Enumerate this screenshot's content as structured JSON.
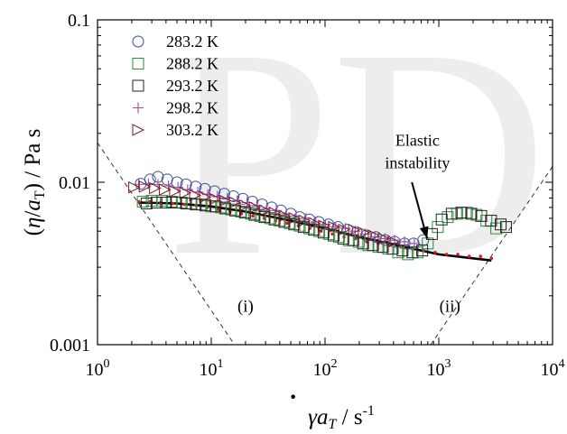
{
  "watermark_text": "PD",
  "chart_data": {
    "type": "scatter",
    "xscale": "log",
    "yscale": "log",
    "xlim": [
      1,
      10000
    ],
    "ylim": [
      0.001,
      0.1
    ],
    "xlabel": {
      "gamma": "γ",
      "dot": "·",
      "a": "a",
      "sub": "T",
      "sep": " / s",
      "exp": "-1"
    },
    "ylabel": {
      "open": "(",
      "eta": "η",
      "slash": "/",
      "a": "a",
      "sub": "T",
      "close": ")",
      "unit": " / Pa s"
    },
    "x_ticks": [
      {
        "value": 1,
        "base": "10",
        "exp": "0"
      },
      {
        "value": 10,
        "base": "10",
        "exp": "1"
      },
      {
        "value": 100,
        "base": "10",
        "exp": "2"
      },
      {
        "value": 1000,
        "base": "10",
        "exp": "3"
      },
      {
        "value": 10000,
        "base": "10",
        "exp": "4"
      }
    ],
    "y_ticks": [
      {
        "value": 0.001,
        "label": "0.001"
      },
      {
        "value": 0.01,
        "label": "0.01"
      },
      {
        "value": 0.1,
        "label": "0.1"
      }
    ],
    "legend_position": "top-left",
    "series": [
      {
        "name": "283.2 K",
        "marker": "circle",
        "color": "#3a4fa0",
        "x": [
          2.4,
          2.9,
          3.4,
          4.1,
          5,
          6,
          7.3,
          8.8,
          10.7,
          13,
          15.7,
          19,
          23,
          28,
          34,
          41,
          50,
          60,
          73,
          88,
          107,
          130,
          157,
          190,
          230,
          280,
          340,
          410,
          500,
          600,
          730
        ],
        "y": [
          0.0098,
          0.0104,
          0.0108,
          0.0104,
          0.01,
          0.0097,
          0.0094,
          0.0091,
          0.0088,
          0.0085,
          0.0082,
          0.0079,
          0.0076,
          0.0073,
          0.007,
          0.0067,
          0.0064,
          0.0061,
          0.0059,
          0.0057,
          0.0055,
          0.0053,
          0.0051,
          0.0049,
          0.0047,
          0.0046,
          0.0044,
          0.0043,
          0.0042,
          0.0042,
          0.0044
        ]
      },
      {
        "name": "288.2 K",
        "marker": "square",
        "color": "#2e8b3a",
        "x": [
          2.5,
          3,
          3.7,
          4.5,
          5.5,
          6.7,
          8.2,
          10,
          12.2,
          15,
          18.3,
          22.4,
          27,
          33,
          40,
          49,
          60,
          73,
          89,
          109,
          133,
          162,
          198,
          240,
          295,
          360,
          440,
          535,
          650,
          800,
          980,
          1200,
          1450,
          1770,
          2150,
          2620,
          3200
        ],
        "y": [
          0.0076,
          0.0077,
          0.0077,
          0.0076,
          0.0075,
          0.0074,
          0.0073,
          0.0071,
          0.007,
          0.0068,
          0.0066,
          0.0064,
          0.0062,
          0.006,
          0.0058,
          0.0056,
          0.0054,
          0.0052,
          0.005,
          0.0048,
          0.0046,
          0.0044,
          0.0043,
          0.0041,
          0.004,
          0.0039,
          0.0037,
          0.0036,
          0.0037,
          0.0042,
          0.0053,
          0.0061,
          0.0064,
          0.0065,
          0.0063,
          0.0058,
          0.0052
        ]
      },
      {
        "name": "293.2 K",
        "marker": "square",
        "color": "#222222",
        "x": [
          2.7,
          3.3,
          4,
          4.9,
          6,
          7.3,
          8.9,
          10.9,
          13.3,
          16.2,
          19.8,
          24,
          29.4,
          36,
          43.9,
          53.6,
          65,
          80,
          97,
          119,
          145,
          177,
          216,
          264,
          322,
          393,
          480,
          586,
          715,
          870,
          1060,
          1300,
          1580,
          1930,
          2360,
          2880,
          3500,
          3900
        ],
        "y": [
          0.0074,
          0.0075,
          0.0075,
          0.0075,
          0.0074,
          0.0073,
          0.0072,
          0.0071,
          0.0069,
          0.0067,
          0.0065,
          0.0063,
          0.0061,
          0.0059,
          0.0057,
          0.0055,
          0.0053,
          0.0051,
          0.0049,
          0.0047,
          0.0045,
          0.0044,
          0.0042,
          0.0041,
          0.004,
          0.0039,
          0.0038,
          0.0037,
          0.0038,
          0.0048,
          0.0059,
          0.0064,
          0.0065,
          0.0064,
          0.0062,
          0.0058,
          0.0055,
          0.0053
        ]
      },
      {
        "name": "298.2 K",
        "marker": "plus",
        "color": "#a54aa5",
        "x": [
          2.3,
          2.8,
          3.4,
          4.2,
          5.1,
          6.2,
          7.6,
          9.3,
          11.3,
          13.8,
          16.9,
          20.6,
          25.1,
          30.7,
          37.4,
          45.7,
          55.8,
          68,
          83,
          101,
          124,
          151,
          184,
          225,
          274,
          335,
          409,
          500,
          610
        ],
        "y": [
          0.0097,
          0.0098,
          0.0097,
          0.0095,
          0.0093,
          0.009,
          0.0087,
          0.0084,
          0.0082,
          0.008,
          0.0077,
          0.0075,
          0.0072,
          0.0069,
          0.0067,
          0.0064,
          0.0062,
          0.006,
          0.0057,
          0.0055,
          0.0053,
          0.0052,
          0.005,
          0.0048,
          0.0046,
          0.0045,
          0.0044,
          0.0043,
          0.0042
        ]
      },
      {
        "name": "303.2 K",
        "marker": "triangle-right",
        "color": "#7a1f1f",
        "x": [
          2.1,
          2.6,
          3.2,
          3.9,
          4.8,
          5.9,
          7.2,
          8.8,
          10.8,
          13.2,
          16.1,
          19.7,
          24.1,
          29.5,
          36,
          44,
          53.8,
          65.7,
          80.3,
          98,
          120,
          147,
          180,
          219,
          268,
          328,
          400
        ],
        "y": [
          0.0093,
          0.0094,
          0.0092,
          0.009,
          0.0088,
          0.0086,
          0.0083,
          0.0081,
          0.0079,
          0.0077,
          0.0075,
          0.0072,
          0.007,
          0.0067,
          0.0065,
          0.0062,
          0.006,
          0.0058,
          0.0056,
          0.0054,
          0.0053,
          0.0051,
          0.0051,
          0.0049,
          0.0047,
          0.0045,
          0.0043
        ]
      }
    ],
    "unlabeled_series": [
      {
        "marker": "line",
        "color": "#000000",
        "x": [
          2.3,
          5,
          10,
          20,
          50,
          100,
          200,
          500,
          1000,
          2000,
          2900
        ],
        "y": [
          0.0075,
          0.0074,
          0.0071,
          0.0066,
          0.0058,
          0.0052,
          0.0046,
          0.004,
          0.0036,
          0.0034,
          0.0033
        ]
      },
      {
        "marker": "dot",
        "color": "#d42020",
        "x": [
          2.3,
          2.9,
          3.6,
          4.6,
          5.8,
          7.3,
          9.2,
          11.6,
          14.6,
          18.4,
          23.2,
          29.2,
          36.8,
          46.3,
          58.3,
          73.4,
          92.4,
          116,
          147,
          185,
          233,
          293,
          369,
          465,
          585,
          737,
          928,
          1170,
          1470,
          1850,
          2330,
          2900
        ],
        "y": [
          0.0076,
          0.0076,
          0.0075,
          0.0074,
          0.0073,
          0.0072,
          0.007,
          0.0068,
          0.0066,
          0.0064,
          0.0062,
          0.006,
          0.0058,
          0.0056,
          0.0054,
          0.0052,
          0.005,
          0.0048,
          0.0046,
          0.0045,
          0.0043,
          0.0042,
          0.0041,
          0.004,
          0.0039,
          0.0038,
          0.0037,
          0.0036,
          0.0036,
          0.0035,
          0.0035,
          0.0034
        ]
      }
    ],
    "reference_lines": [
      {
        "label": "(i)",
        "style": "dashed",
        "x": [
          1,
          16
        ],
        "y": [
          0.0175,
          0.001
        ],
        "label_at": [
          20,
          0.0016
        ]
      },
      {
        "label": "(ii)",
        "style": "dashed",
        "x": [
          850,
          10000
        ],
        "y": [
          0.001,
          0.0125
        ],
        "label_at": [
          1250,
          0.0016
        ]
      }
    ],
    "annotation": {
      "lines": [
        "Elastic",
        "instability"
      ],
      "text_at": [
        650,
        0.0168
      ],
      "arrow_from": [
        580,
        0.01
      ],
      "arrow_to": [
        790,
        0.0045
      ]
    }
  }
}
